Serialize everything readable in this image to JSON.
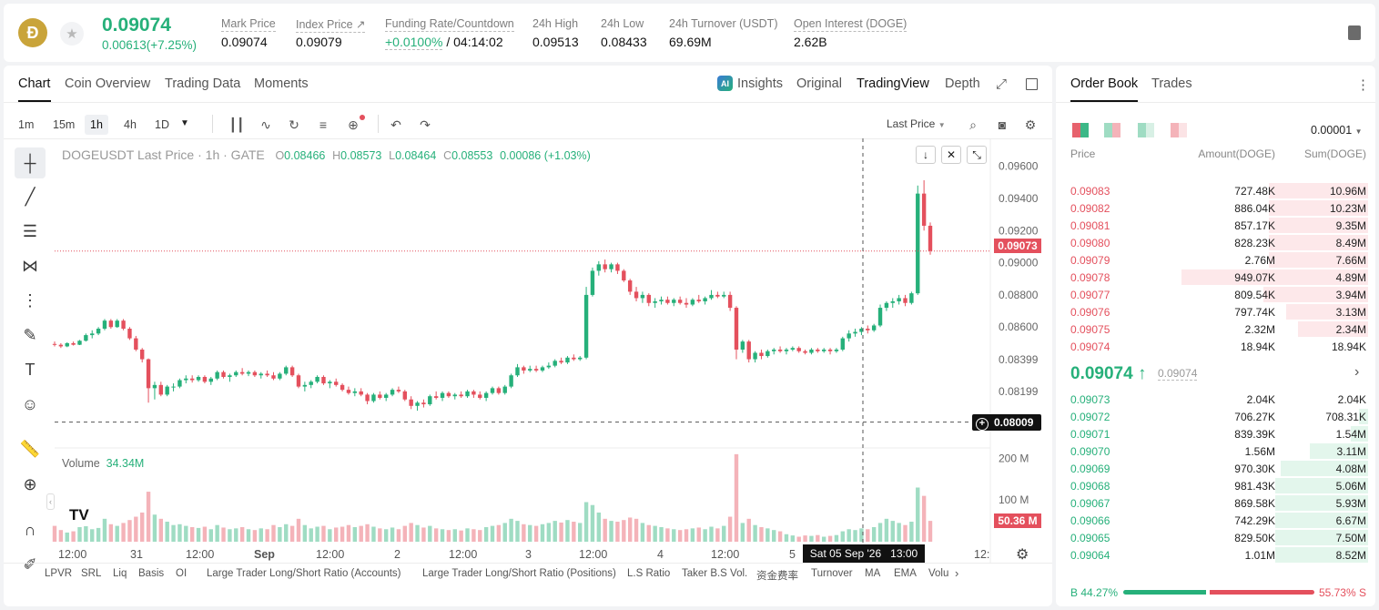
{
  "header": {
    "coin_glyph": "Ð",
    "last_price": "0.09074",
    "change": "0.00613(+7.25%)",
    "stats": [
      {
        "label": "Mark Price",
        "value": "0.09074"
      },
      {
        "label": "Index Price ↗",
        "value": "0.09079"
      },
      {
        "label": "Funding Rate/Countdown",
        "value_a": "+0.0100%",
        "value_b": " / 04:14:02"
      },
      {
        "label": "24h High",
        "value": "0.09513"
      },
      {
        "label": "24h Low",
        "value": "0.08433"
      },
      {
        "label": "24h Turnover (USDT)",
        "value": "69.69M"
      },
      {
        "label": "Open Interest (DOGE)",
        "value": "2.62B"
      }
    ]
  },
  "chart_tabs": [
    "Chart",
    "Coin Overview",
    "Trading Data",
    "Moments"
  ],
  "view_tabs": {
    "insights": "Insights",
    "original": "Original",
    "tradingview": "TradingView",
    "depth": "Depth"
  },
  "timeframes": [
    "1m",
    "15m",
    "1h",
    "4h",
    "1D"
  ],
  "price_type": "Last Price",
  "legend": {
    "symbol": "DOGEUSDT Last Price · 1h · GATE",
    "o_key": "O",
    "o": "0.08466",
    "h_key": "H",
    "h": "0.08573",
    "l_key": "L",
    "l": "0.08464",
    "c_key": "C",
    "c": "0.08553",
    "chg": "0.00086 (+1.03%)"
  },
  "volume": {
    "label": "Volume",
    "value": "34.34M",
    "tag": "50.36 M"
  },
  "price_tags": {
    "last": "0.09073",
    "cross": "0.08009"
  },
  "crosshair_time": "Sat 05 Sep '26   13:00",
  "indicators": [
    "LPVR",
    "SRL",
    "Liq",
    "Basis",
    "OI",
    "Large Trader Long/Short Ratio (Accounts)",
    "Large Trader Long/Short Ratio (Positions)",
    "L.S Ratio",
    "Taker B.S Vol.",
    "资金费率",
    "Turnover",
    "MA",
    "EMA",
    "Volu"
  ],
  "colors": {
    "up": "#26b07a",
    "down": "#e4505d"
  },
  "chart_data": {
    "type": "candlestick",
    "title": "DOGEUSDT Last Price · 1h · GATE",
    "y_ticks": [
      "0.09600",
      "0.09400",
      "0.09200",
      "0.09000",
      "0.08800",
      "0.08600",
      "0.08399",
      "0.08199"
    ],
    "x_ticks": [
      "12:00",
      "31",
      "12:00",
      "Sep",
      "12:00",
      "2",
      "12:00",
      "3",
      "12:00",
      "4",
      "12:00",
      "5",
      "",
      "12:"
    ],
    "volume_ticks": [
      "200 M",
      "100 M"
    ],
    "ylim": [
      0.0799,
      0.0966
    ],
    "vol_ylim": [
      0,
      225
    ],
    "candles": [
      [
        0.08495,
        0.0851,
        0.0848,
        0.0849,
        38
      ],
      [
        0.0849,
        0.085,
        0.0847,
        0.0848,
        28
      ],
      [
        0.0848,
        0.08505,
        0.08475,
        0.085,
        22
      ],
      [
        0.085,
        0.0851,
        0.08485,
        0.0849,
        25
      ],
      [
        0.0849,
        0.0852,
        0.08488,
        0.08515,
        35
      ],
      [
        0.08515,
        0.0856,
        0.0851,
        0.0855,
        40
      ],
      [
        0.0855,
        0.0858,
        0.0853,
        0.0856,
        30
      ],
      [
        0.0856,
        0.086,
        0.0855,
        0.0859,
        33
      ],
      [
        0.0859,
        0.0865,
        0.0858,
        0.0864,
        55
      ],
      [
        0.0864,
        0.0865,
        0.0859,
        0.086,
        42
      ],
      [
        0.086,
        0.0865,
        0.08595,
        0.0864,
        38
      ],
      [
        0.0864,
        0.0865,
        0.0858,
        0.0859,
        45
      ],
      [
        0.0859,
        0.086,
        0.0852,
        0.0853,
        52
      ],
      [
        0.0853,
        0.08545,
        0.0845,
        0.0846,
        60
      ],
      [
        0.0846,
        0.0847,
        0.0838,
        0.084,
        70
      ],
      [
        0.084,
        0.08405,
        0.0813,
        0.0822,
        120
      ],
      [
        0.0822,
        0.0826,
        0.0815,
        0.0824,
        65
      ],
      [
        0.0824,
        0.0826,
        0.0817,
        0.0818,
        55
      ],
      [
        0.0818,
        0.0824,
        0.0817,
        0.0823,
        48
      ],
      [
        0.0823,
        0.0825,
        0.082,
        0.0823,
        40
      ],
      [
        0.0823,
        0.0828,
        0.0822,
        0.0827,
        42
      ],
      [
        0.0827,
        0.083,
        0.0825,
        0.0828,
        38
      ],
      [
        0.0828,
        0.083,
        0.08255,
        0.0827,
        35
      ],
      [
        0.0827,
        0.083,
        0.0826,
        0.0829,
        33
      ],
      [
        0.0829,
        0.083,
        0.0825,
        0.0826,
        36
      ],
      [
        0.0826,
        0.0829,
        0.0824,
        0.0828,
        30
      ],
      [
        0.0828,
        0.0833,
        0.0827,
        0.0832,
        40
      ],
      [
        0.0832,
        0.0833,
        0.0828,
        0.0829,
        34
      ],
      [
        0.0829,
        0.0831,
        0.0826,
        0.083,
        30
      ],
      [
        0.083,
        0.0833,
        0.0829,
        0.0832,
        32
      ],
      [
        0.0832,
        0.08345,
        0.083,
        0.0831,
        35
      ],
      [
        0.0831,
        0.0833,
        0.08295,
        0.0832,
        30
      ],
      [
        0.0832,
        0.0833,
        0.0829,
        0.083,
        28
      ],
      [
        0.083,
        0.0832,
        0.0828,
        0.0831,
        32
      ],
      [
        0.0831,
        0.0833,
        0.0829,
        0.083,
        30
      ],
      [
        0.083,
        0.0832,
        0.0827,
        0.0828,
        40
      ],
      [
        0.0828,
        0.0832,
        0.0827,
        0.0831,
        35
      ],
      [
        0.0831,
        0.0836,
        0.083,
        0.0835,
        42
      ],
      [
        0.0835,
        0.0836,
        0.0829,
        0.083,
        38
      ],
      [
        0.083,
        0.0831,
        0.0822,
        0.0823,
        55
      ],
      [
        0.0823,
        0.0826,
        0.082,
        0.0824,
        40
      ],
      [
        0.0824,
        0.0827,
        0.0822,
        0.0826,
        32
      ],
      [
        0.0826,
        0.083,
        0.0825,
        0.0829,
        36
      ],
      [
        0.0829,
        0.083,
        0.0824,
        0.0825,
        38
      ],
      [
        0.0825,
        0.0827,
        0.0822,
        0.0826,
        30
      ],
      [
        0.0826,
        0.0828,
        0.0823,
        0.0824,
        34
      ],
      [
        0.0824,
        0.0825,
        0.082,
        0.0821,
        36
      ],
      [
        0.0821,
        0.0823,
        0.0818,
        0.0819,
        40
      ],
      [
        0.0819,
        0.0822,
        0.0817,
        0.082,
        35
      ],
      [
        0.082,
        0.0822,
        0.0817,
        0.0818,
        38
      ],
      [
        0.0818,
        0.0819,
        0.0812,
        0.0814,
        42
      ],
      [
        0.0814,
        0.0819,
        0.0813,
        0.0818,
        36
      ],
      [
        0.0818,
        0.082,
        0.0815,
        0.0816,
        32
      ],
      [
        0.0816,
        0.0819,
        0.0814,
        0.0818,
        30
      ],
      [
        0.0818,
        0.0822,
        0.0817,
        0.0821,
        34
      ],
      [
        0.0821,
        0.0823,
        0.0819,
        0.082,
        30
      ],
      [
        0.082,
        0.0821,
        0.0814,
        0.0815,
        38
      ],
      [
        0.0815,
        0.0817,
        0.0809,
        0.0811,
        45
      ],
      [
        0.0811,
        0.0814,
        0.0808,
        0.0813,
        40
      ],
      [
        0.0813,
        0.0815,
        0.081,
        0.0812,
        34
      ],
      [
        0.0812,
        0.0818,
        0.0811,
        0.0817,
        38
      ],
      [
        0.0817,
        0.082,
        0.0815,
        0.0816,
        32
      ],
      [
        0.0816,
        0.082,
        0.0814,
        0.0819,
        30
      ],
      [
        0.0819,
        0.082,
        0.0816,
        0.0817,
        28
      ],
      [
        0.0817,
        0.0819,
        0.0815,
        0.0818,
        30
      ],
      [
        0.0818,
        0.082,
        0.0816,
        0.0817,
        27
      ],
      [
        0.0817,
        0.0821,
        0.0816,
        0.082,
        32
      ],
      [
        0.082,
        0.0821,
        0.0816,
        0.0818,
        30
      ],
      [
        0.0818,
        0.082,
        0.0815,
        0.0816,
        28
      ],
      [
        0.0816,
        0.082,
        0.0814,
        0.0819,
        35
      ],
      [
        0.0819,
        0.0823,
        0.0818,
        0.0822,
        38
      ],
      [
        0.0822,
        0.0823,
        0.0818,
        0.0819,
        40
      ],
      [
        0.0819,
        0.0824,
        0.0818,
        0.0823,
        45
      ],
      [
        0.0823,
        0.0831,
        0.0822,
        0.083,
        55
      ],
      [
        0.083,
        0.0837,
        0.0829,
        0.0835,
        50
      ],
      [
        0.0835,
        0.0836,
        0.0831,
        0.0833,
        42
      ],
      [
        0.0833,
        0.0836,
        0.0832,
        0.0834,
        40
      ],
      [
        0.0834,
        0.0836,
        0.0832,
        0.0833,
        38
      ],
      [
        0.0833,
        0.0836,
        0.0832,
        0.0835,
        42
      ],
      [
        0.0835,
        0.0838,
        0.0834,
        0.0836,
        45
      ],
      [
        0.0836,
        0.084,
        0.0835,
        0.0839,
        50
      ],
      [
        0.0839,
        0.0841,
        0.0837,
        0.0838,
        46
      ],
      [
        0.0838,
        0.0842,
        0.0837,
        0.0841,
        52
      ],
      [
        0.0841,
        0.0843,
        0.0839,
        0.084,
        48
      ],
      [
        0.084,
        0.0842,
        0.0839,
        0.0841,
        45
      ],
      [
        0.0841,
        0.0885,
        0.084,
        0.088,
        95
      ],
      [
        0.088,
        0.0897,
        0.0879,
        0.0895,
        88
      ],
      [
        0.0895,
        0.0901,
        0.0892,
        0.0899,
        70
      ],
      [
        0.0899,
        0.0902,
        0.0894,
        0.0896,
        55
      ],
      [
        0.0896,
        0.09,
        0.0894,
        0.0899,
        50
      ],
      [
        0.0899,
        0.09,
        0.0893,
        0.0895,
        48
      ],
      [
        0.0895,
        0.0896,
        0.0888,
        0.0889,
        52
      ],
      [
        0.0889,
        0.089,
        0.088,
        0.0882,
        58
      ],
      [
        0.0882,
        0.0885,
        0.0876,
        0.0878,
        55
      ],
      [
        0.0878,
        0.0882,
        0.0875,
        0.088,
        45
      ],
      [
        0.088,
        0.0881,
        0.0873,
        0.0875,
        40
      ],
      [
        0.0875,
        0.0878,
        0.0872,
        0.0876,
        38
      ],
      [
        0.0876,
        0.0879,
        0.0874,
        0.0877,
        35
      ],
      [
        0.0877,
        0.0879,
        0.0874,
        0.0875,
        32
      ],
      [
        0.0875,
        0.0878,
        0.0873,
        0.0877,
        30
      ],
      [
        0.0877,
        0.0879,
        0.0874,
        0.0875,
        28
      ],
      [
        0.0875,
        0.0878,
        0.0872,
        0.0874,
        30
      ],
      [
        0.0874,
        0.0878,
        0.0873,
        0.0877,
        32
      ],
      [
        0.0877,
        0.088,
        0.0875,
        0.0876,
        34
      ],
      [
        0.0876,
        0.0879,
        0.0874,
        0.0878,
        30
      ],
      [
        0.0878,
        0.0883,
        0.0877,
        0.088,
        36
      ],
      [
        0.088,
        0.0882,
        0.0878,
        0.0879,
        32
      ],
      [
        0.0879,
        0.0882,
        0.0878,
        0.088,
        38
      ],
      [
        0.088,
        0.0882,
        0.087,
        0.0872,
        60
      ],
      [
        0.0872,
        0.0873,
        0.084,
        0.0846,
        210
      ],
      [
        0.0846,
        0.0852,
        0.0844,
        0.0851,
        45
      ],
      [
        0.0851,
        0.0852,
        0.0838,
        0.084,
        55
      ],
      [
        0.084,
        0.0845,
        0.0838,
        0.0844,
        40
      ],
      [
        0.0844,
        0.0846,
        0.084,
        0.0842,
        35
      ],
      [
        0.0842,
        0.0846,
        0.0841,
        0.0845,
        32
      ],
      [
        0.0845,
        0.0847,
        0.0843,
        0.0846,
        28
      ],
      [
        0.0846,
        0.0848,
        0.0844,
        0.0845,
        25
      ],
      [
        0.0845,
        0.0847,
        0.0843,
        0.0846,
        18
      ],
      [
        0.0846,
        0.0848,
        0.0845,
        0.0847,
        15
      ],
      [
        0.0847,
        0.0848,
        0.0844,
        0.0845,
        12
      ],
      [
        0.0845,
        0.0846,
        0.0843,
        0.0844,
        15
      ],
      [
        0.0844,
        0.0847,
        0.0843,
        0.0846,
        14
      ],
      [
        0.0846,
        0.0847,
        0.0844,
        0.0845,
        16
      ],
      [
        0.0845,
        0.0847,
        0.0844,
        0.0846,
        12
      ],
      [
        0.0846,
        0.0847,
        0.0843,
        0.0845,
        14
      ],
      [
        0.0845,
        0.0847,
        0.0844,
        0.0846,
        16
      ],
      [
        0.0846,
        0.0854,
        0.0845,
        0.0853,
        25
      ],
      [
        0.0853,
        0.0858,
        0.0851,
        0.0856,
        30
      ],
      [
        0.0856,
        0.0859,
        0.0854,
        0.0857,
        28
      ],
      [
        0.0857,
        0.086,
        0.0855,
        0.0859,
        32
      ],
      [
        0.0859,
        0.0861,
        0.0856,
        0.0858,
        30
      ],
      [
        0.0858,
        0.0862,
        0.0857,
        0.0861,
        35
      ],
      [
        0.0861,
        0.0874,
        0.086,
        0.0872,
        45
      ],
      [
        0.0872,
        0.0876,
        0.087,
        0.0875,
        55
      ],
      [
        0.0875,
        0.0878,
        0.0872,
        0.0876,
        50
      ],
      [
        0.0876,
        0.088,
        0.0874,
        0.0878,
        45
      ],
      [
        0.0878,
        0.088,
        0.0873,
        0.0875,
        40
      ],
      [
        0.0875,
        0.0882,
        0.0874,
        0.0881,
        48
      ],
      [
        0.0881,
        0.0948,
        0.088,
        0.0943,
        130
      ],
      [
        0.0943,
        0.09513,
        0.092,
        0.0923,
        110
      ],
      [
        0.0923,
        0.0925,
        0.0905,
        0.09073,
        50
      ]
    ]
  },
  "orderbook": {
    "tabs": [
      "Order Book",
      "Trades"
    ],
    "precision": "0.00001",
    "headers": {
      "price": "Price",
      "amount": "Amount(DOGE)",
      "sum": "Sum(DOGE)"
    },
    "asks": [
      {
        "price": "0.09083",
        "amount": "727.48K",
        "sum": "10.96M",
        "depth": 0.34
      },
      {
        "price": "0.09082",
        "amount": "886.04K",
        "sum": "10.23M",
        "depth": 0.34
      },
      {
        "price": "0.09081",
        "amount": "857.17K",
        "sum": "9.35M",
        "depth": 0.34
      },
      {
        "price": "0.09080",
        "amount": "828.23K",
        "sum": "8.49M",
        "depth": 0.34
      },
      {
        "price": "0.09079",
        "amount": "2.76M",
        "sum": "7.66M",
        "depth": 0.34
      },
      {
        "price": "0.09078",
        "amount": "949.07K",
        "sum": "4.89M",
        "depth": 0.64
      },
      {
        "price": "0.09077",
        "amount": "809.54K",
        "sum": "3.94M",
        "depth": 0.36
      },
      {
        "price": "0.09076",
        "amount": "797.74K",
        "sum": "3.13M",
        "depth": 0.28
      },
      {
        "price": "0.09075",
        "amount": "2.32M",
        "sum": "2.34M",
        "depth": 0.24
      },
      {
        "price": "0.09074",
        "amount": "18.94K",
        "sum": "18.94K",
        "depth": 0.0
      }
    ],
    "mid_price": "0.09074 ↑",
    "mid_sub": "0.09074",
    "bids": [
      {
        "price": "0.09073",
        "amount": "2.04K",
        "sum": "2.04K",
        "depth": 0.0
      },
      {
        "price": "0.09072",
        "amount": "706.27K",
        "sum": "708.31K",
        "depth": 0.03
      },
      {
        "price": "0.09071",
        "amount": "839.39K",
        "sum": "1.54M",
        "depth": 0.06
      },
      {
        "price": "0.09070",
        "amount": "1.56M",
        "sum": "3.11M",
        "depth": 0.2
      },
      {
        "price": "0.09069",
        "amount": "970.30K",
        "sum": "4.08M",
        "depth": 0.3
      },
      {
        "price": "0.09068",
        "amount": "981.43K",
        "sum": "5.06M",
        "depth": 0.32
      },
      {
        "price": "0.09067",
        "amount": "869.58K",
        "sum": "5.93M",
        "depth": 0.32
      },
      {
        "price": "0.09066",
        "amount": "742.29K",
        "sum": "6.67M",
        "depth": 0.32
      },
      {
        "price": "0.09065",
        "amount": "829.50K",
        "sum": "7.50M",
        "depth": 0.32
      },
      {
        "price": "0.09064",
        "amount": "1.01M",
        "sum": "8.52M",
        "depth": 0.32
      }
    ],
    "buy_label": "B 44.27%",
    "sell_label": "55.73% S",
    "buy_ratio": 0.4427
  }
}
